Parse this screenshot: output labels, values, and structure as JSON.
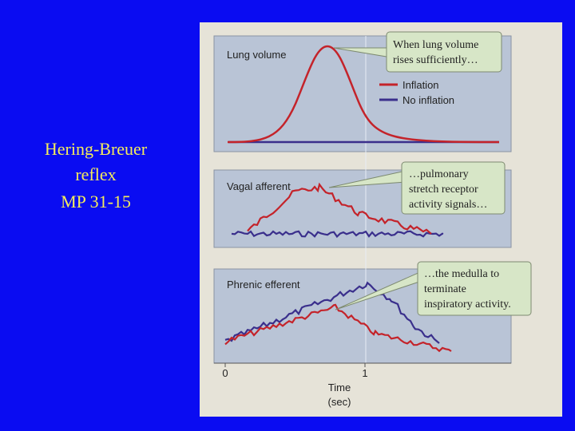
{
  "slide": {
    "title_lines": [
      "Hering-Breuer",
      "reflex",
      "MP 31-15"
    ]
  },
  "figure": {
    "panels": [
      {
        "label": "Lung volume"
      },
      {
        "label": "Vagal afferent"
      },
      {
        "label": "Phrenic efferent"
      }
    ],
    "legend": [
      "Inflation",
      "No inflation"
    ],
    "callouts": [
      {
        "lines": [
          "When lung volume",
          "rises sufficiently…"
        ]
      },
      {
        "lines": [
          "…pulmonary",
          "stretch receptor",
          "activity signals…"
        ]
      },
      {
        "lines": [
          "…the medulla to",
          "terminate",
          "inspiratory activity."
        ]
      }
    ],
    "time_ticks": [
      "0",
      "1"
    ],
    "time_label": [
      "Time",
      "(sec)"
    ]
  }
}
